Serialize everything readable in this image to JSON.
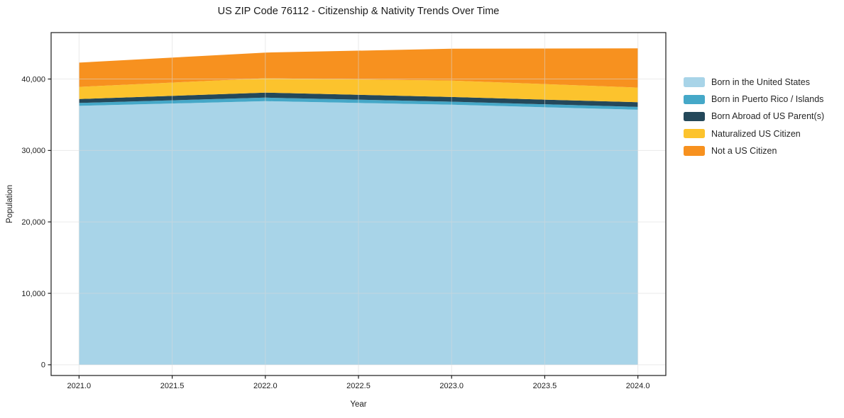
{
  "figure": {
    "background_color": "#ffffff",
    "spine_color": "#1c1c1c",
    "grid_color": "#d9d9d9",
    "text_color": "#1c1c1c"
  },
  "chart_data": {
    "type": "area",
    "stacked": true,
    "title": "US ZIP Code 76112 - Citizenship & Nativity Trends Over Time",
    "xlabel": "Year",
    "ylabel": "Population",
    "x": [
      2021,
      2022,
      2023,
      2024
    ],
    "series": [
      {
        "name": "Born in the United States",
        "color": "#a8d4e8",
        "values": [
          36250,
          36900,
          36400,
          35700
        ]
      },
      {
        "name": "Born in Puerto Rico / Islands",
        "color": "#45a8c8",
        "values": [
          400,
          500,
          430,
          400
        ]
      },
      {
        "name": "Born Abroad of US Parent(s)",
        "color": "#24485a",
        "values": [
          550,
          700,
          660,
          650
        ]
      },
      {
        "name": "Naturalized US Citizen",
        "color": "#fcc32d",
        "values": [
          1700,
          2000,
          2300,
          2050
        ]
      },
      {
        "name": "Not a US Citizen",
        "color": "#f7911f",
        "values": [
          3400,
          3600,
          4450,
          5500
        ]
      }
    ],
    "stacked_totals": [
      42300,
      43700,
      44240,
      44300
    ],
    "x_tick_values": [
      2021.0,
      2021.5,
      2022.0,
      2022.5,
      2023.0,
      2023.5,
      2024.0
    ],
    "x_tick_labels": [
      "2021.0",
      "2021.5",
      "2022.0",
      "2022.5",
      "2023.0",
      "2023.5",
      "2024.0"
    ],
    "y_tick_values": [
      0,
      10000,
      20000,
      30000,
      40000
    ],
    "y_tick_labels": [
      "0",
      "10,000",
      "20,000",
      "30,000",
      "40,000"
    ],
    "xlim": [
      2020.85,
      2024.15
    ],
    "ylim": [
      -1500,
      46500
    ],
    "grid": true,
    "legend_position": "right"
  }
}
